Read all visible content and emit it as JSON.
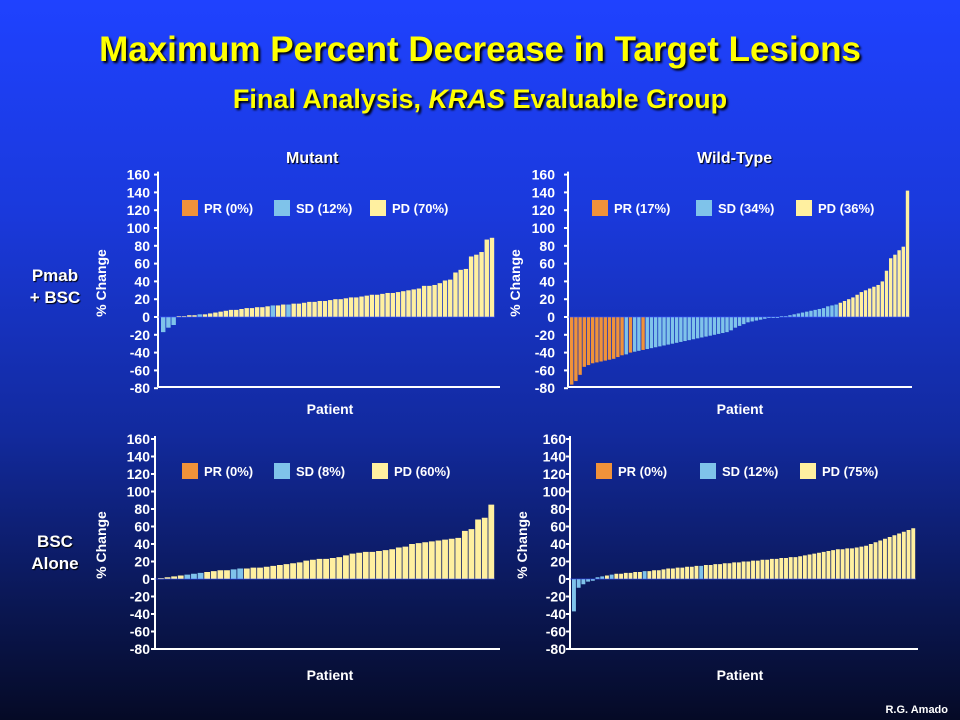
{
  "slide": {
    "title": "Maximum Percent Decrease in Target Lesions",
    "subtitle": "Final Analysis, KRAS Evaluable Group",
    "col_mutant": "Mutant",
    "col_wild": "Wild-Type",
    "row1_line1": "Pmab",
    "row1_line2": "+ BSC",
    "row2_line1": "BSC",
    "row2_line2": "Alone",
    "credit": "R.G. Amado"
  },
  "colors": {
    "PR": "#f0923a",
    "SD": "#7fc3ea",
    "PD": "#fff0a0",
    "axis": "#ffffff"
  },
  "chart_data": [
    {
      "type": "bar",
      "panel": "Pmab + BSC, Mutant",
      "xlabel": "Patient",
      "ylabel": "% Change",
      "ylim": [
        -80,
        160
      ],
      "yticks": [
        160,
        140,
        120,
        100,
        80,
        60,
        40,
        20,
        0,
        -20,
        -40,
        -60,
        -80
      ],
      "legend": [
        {
          "key": "PR",
          "label": "PR (0%)"
        },
        {
          "key": "SD",
          "label": "SD (12%)"
        },
        {
          "key": "PD",
          "label": "PD (70%)"
        }
      ],
      "values": [
        -17,
        -12,
        -9,
        1,
        1,
        2,
        2,
        3,
        3,
        4,
        5,
        6,
        7,
        8,
        8,
        9,
        10,
        10,
        11,
        11,
        12,
        13,
        13,
        14,
        14,
        15,
        15,
        16,
        17,
        17,
        18,
        18,
        19,
        20,
        20,
        21,
        22,
        22,
        23,
        24,
        25,
        25,
        26,
        27,
        27,
        28,
        29,
        30,
        31,
        32,
        35,
        35,
        36,
        38,
        41,
        42,
        50,
        53,
        54,
        68,
        70,
        73,
        87,
        89
      ],
      "response": [
        "SD",
        "SD",
        "SD",
        "PD",
        "PD",
        "PD",
        "PD",
        "SD",
        "PD",
        "PD",
        "PD",
        "PD",
        "PD",
        "PD",
        "PD",
        "PD",
        "PD",
        "PD",
        "PD",
        "PD",
        "PD",
        "SD",
        "PD",
        "PD",
        "SD",
        "PD",
        "PD",
        "PD",
        "PD",
        "PD",
        "PD",
        "PD",
        "PD",
        "PD",
        "PD",
        "PD",
        "PD",
        "PD",
        "PD",
        "PD",
        "PD",
        "PD",
        "PD",
        "PD",
        "PD",
        "PD",
        "PD",
        "PD",
        "PD",
        "PD",
        "PD",
        "PD",
        "PD",
        "PD",
        "PD",
        "PD",
        "PD",
        "PD",
        "PD",
        "PD",
        "PD",
        "PD",
        "PD",
        "PD"
      ]
    },
    {
      "type": "bar",
      "panel": "Pmab + BSC, Wild-Type",
      "xlabel": "Patient",
      "ylabel": "% Change",
      "ylim": [
        -80,
        160
      ],
      "yticks": [
        160,
        140,
        120,
        100,
        80,
        60,
        40,
        20,
        0,
        -20,
        -40,
        -60,
        -80
      ],
      "legend": [
        {
          "key": "PR",
          "label": "PR (17%)"
        },
        {
          "key": "SD",
          "label": "SD (34%)"
        },
        {
          "key": "PD",
          "label": "PD (36%)"
        }
      ],
      "values": [
        -76,
        -72,
        -65,
        -56,
        -54,
        -52,
        -51,
        -50,
        -49,
        -48,
        -47,
        -45,
        -43,
        -42,
        -40,
        -39,
        -38,
        -37,
        -36,
        -35,
        -34,
        -33,
        -32,
        -31,
        -30,
        -29,
        -28,
        -27,
        -26,
        -25,
        -24,
        -23,
        -22,
        -21,
        -20,
        -19,
        -18,
        -17,
        -15,
        -12,
        -10,
        -8,
        -6,
        -5,
        -4,
        -3,
        -2,
        -1,
        -1,
        0,
        1,
        1,
        2,
        3,
        4,
        5,
        6,
        7,
        8,
        9,
        10,
        12,
        13,
        14,
        16,
        18,
        20,
        22,
        25,
        28,
        30,
        32,
        34,
        36,
        40,
        52,
        66,
        70,
        75,
        79,
        142
      ],
      "response": [
        "PR",
        "PR",
        "PR",
        "PR",
        "PR",
        "PR",
        "PR",
        "PR",
        "PR",
        "PR",
        "PR",
        "PR",
        "PR",
        "SD",
        "PR",
        "SD",
        "SD",
        "PR",
        "SD",
        "SD",
        "SD",
        "SD",
        "SD",
        "SD",
        "SD",
        "SD",
        "SD",
        "SD",
        "SD",
        "SD",
        "SD",
        "SD",
        "SD",
        "SD",
        "SD",
        "SD",
        "SD",
        "SD",
        "SD",
        "SD",
        "SD",
        "SD",
        "SD",
        "SD",
        "SD",
        "SD",
        "SD",
        "SD",
        "SD",
        "SD",
        "SD",
        "SD",
        "SD",
        "SD",
        "SD",
        "SD",
        "SD",
        "SD",
        "SD",
        "SD",
        "SD",
        "SD",
        "SD",
        "SD",
        "PD",
        "PD",
        "PD",
        "PD",
        "PD",
        "PD",
        "PD",
        "PD",
        "PD",
        "PD",
        "PD",
        "PD",
        "PD",
        "PD",
        "PD",
        "PD",
        "PD"
      ]
    },
    {
      "type": "bar",
      "panel": "BSC Alone, Mutant",
      "xlabel": "Patient",
      "ylabel": "% Change",
      "ylim": [
        -80,
        160
      ],
      "yticks": [
        160,
        140,
        120,
        100,
        80,
        60,
        40,
        20,
        0,
        -20,
        -40,
        -60,
        -80
      ],
      "legend": [
        {
          "key": "PR",
          "label": "PR (0%)"
        },
        {
          "key": "SD",
          "label": "SD (8%)"
        },
        {
          "key": "PD",
          "label": "PD (60%)"
        }
      ],
      "values": [
        1,
        2,
        3,
        4,
        5,
        6,
        7,
        8,
        9,
        10,
        10,
        11,
        12,
        12,
        13,
        13,
        14,
        15,
        16,
        17,
        18,
        19,
        21,
        22,
        23,
        23,
        24,
        25,
        27,
        29,
        30,
        31,
        31,
        32,
        33,
        34,
        36,
        37,
        40,
        41,
        42,
        43,
        44,
        45,
        46,
        47,
        55,
        57,
        68,
        70,
        85
      ],
      "response": [
        "PD",
        "PD",
        "PD",
        "PD",
        "SD",
        "SD",
        "SD",
        "PD",
        "PD",
        "PD",
        "PD",
        "SD",
        "SD",
        "PD",
        "PD",
        "PD",
        "PD",
        "PD",
        "PD",
        "PD",
        "PD",
        "PD",
        "PD",
        "PD",
        "PD",
        "PD",
        "PD",
        "PD",
        "PD",
        "PD",
        "PD",
        "PD",
        "PD",
        "PD",
        "PD",
        "PD",
        "PD",
        "PD",
        "PD",
        "PD",
        "PD",
        "PD",
        "PD",
        "PD",
        "PD",
        "PD",
        "PD",
        "PD",
        "PD",
        "PD",
        "PD"
      ]
    },
    {
      "type": "bar",
      "panel": "BSC Alone, Wild-Type",
      "xlabel": "Patient",
      "ylabel": "% Change",
      "ylim": [
        -80,
        160
      ],
      "yticks": [
        160,
        140,
        120,
        100,
        80,
        60,
        40,
        20,
        0,
        -20,
        -40,
        -60,
        -80
      ],
      "legend": [
        {
          "key": "PR",
          "label": "PR (0%)"
        },
        {
          "key": "SD",
          "label": "SD (12%)"
        },
        {
          "key": "PD",
          "label": "PD (75%)"
        }
      ],
      "values": [
        -37,
        -10,
        -6,
        -3,
        -2,
        2,
        3,
        4,
        5,
        6,
        6,
        7,
        7,
        8,
        8,
        9,
        9,
        10,
        10,
        11,
        12,
        12,
        13,
        13,
        14,
        14,
        15,
        15,
        16,
        16,
        17,
        17,
        18,
        18,
        19,
        19,
        20,
        20,
        21,
        21,
        22,
        22,
        23,
        23,
        24,
        24,
        25,
        25,
        26,
        27,
        28,
        29,
        30,
        31,
        32,
        33,
        34,
        34,
        35,
        35,
        36,
        37,
        38,
        40,
        42,
        44,
        46,
        48,
        50,
        52,
        54,
        56,
        58
      ],
      "response": [
        "SD",
        "SD",
        "SD",
        "SD",
        "SD",
        "SD",
        "SD",
        "PD",
        "SD",
        "PD",
        "PD",
        "PD",
        "PD",
        "PD",
        "PD",
        "SD",
        "PD",
        "PD",
        "PD",
        "PD",
        "PD",
        "PD",
        "PD",
        "PD",
        "PD",
        "PD",
        "PD",
        "SD",
        "PD",
        "PD",
        "PD",
        "PD",
        "PD",
        "PD",
        "PD",
        "PD",
        "PD",
        "PD",
        "PD",
        "PD",
        "PD",
        "PD",
        "PD",
        "PD",
        "PD",
        "PD",
        "PD",
        "PD",
        "PD",
        "PD",
        "PD",
        "PD",
        "PD",
        "PD",
        "PD",
        "PD",
        "PD",
        "PD",
        "PD",
        "PD",
        "PD",
        "PD",
        "PD",
        "PD",
        "PD",
        "PD",
        "PD",
        "PD",
        "PD",
        "PD",
        "PD",
        "PD",
        "PD"
      ]
    }
  ]
}
